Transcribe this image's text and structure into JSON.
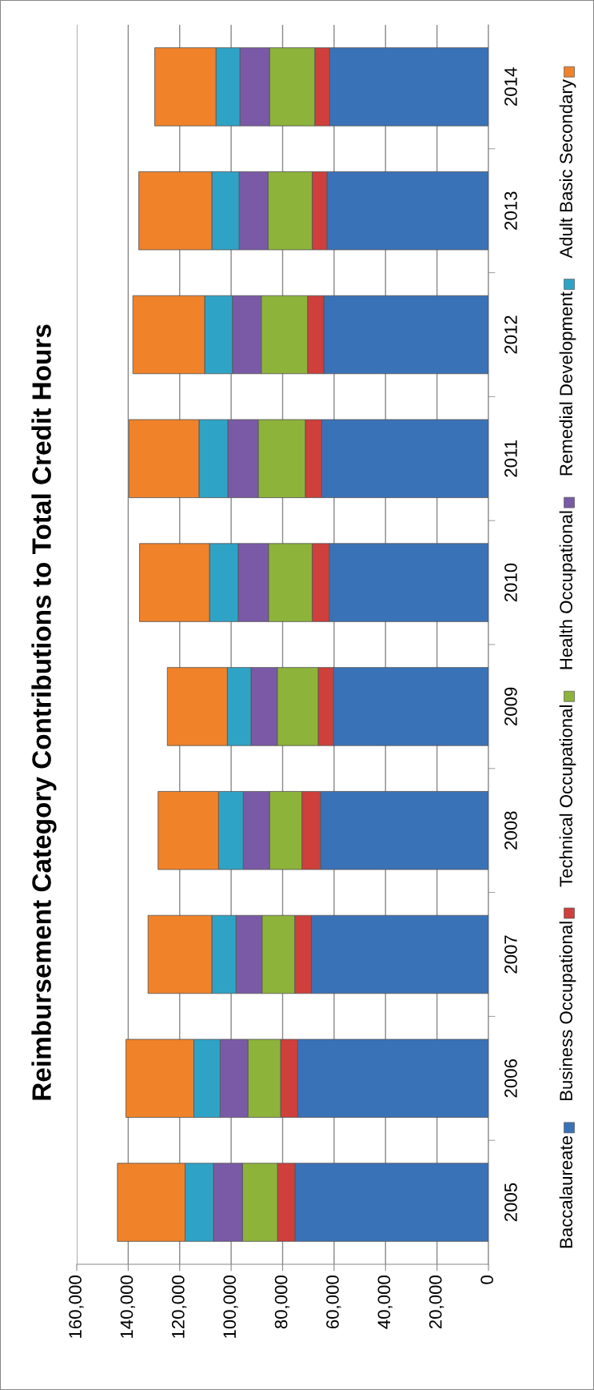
{
  "chart_data": {
    "type": "bar",
    "title": "Reimbursement Category Contributions to Total Credit Hours",
    "orientation": "horizontal",
    "stacked": true,
    "categories": [
      "2014",
      "2013",
      "2012",
      "2011",
      "2010",
      "2009",
      "2008",
      "2007",
      "2006",
      "2005"
    ],
    "series": [
      {
        "name": "Baccalaureate",
        "color": "#3a72b8",
        "values": [
          61700,
          62800,
          64000,
          64800,
          61900,
          60300,
          65300,
          68800,
          74100,
          75200
        ]
      },
      {
        "name": "Business Occupational",
        "color": "#cf3f3b",
        "values": [
          5800,
          5700,
          6300,
          6400,
          6600,
          5900,
          7200,
          6500,
          6700,
          6800
        ]
      },
      {
        "name": "Technical Occupational",
        "color": "#8db33a",
        "values": [
          17600,
          17200,
          18000,
          18300,
          17000,
          15900,
          12600,
          12700,
          12700,
          13600
        ]
      },
      {
        "name": "Health Occupational",
        "color": "#7a5aa6",
        "values": [
          11500,
          11200,
          11200,
          11800,
          11800,
          10200,
          10200,
          10100,
          10800,
          11300
        ]
      },
      {
        "name": "Remedial Development",
        "color": "#2fa3c6",
        "values": [
          9300,
          10600,
          10800,
          11200,
          11100,
          9200,
          9600,
          9400,
          10200,
          11000
        ]
      },
      {
        "name": "Adult Basic Secondary",
        "color": "#f0822a",
        "values": [
          23800,
          28400,
          27900,
          27200,
          27200,
          23300,
          23500,
          24800,
          26400,
          26300
        ]
      }
    ],
    "xlim": [
      160000,
      0
    ],
    "xticks": [
      {
        "value": 160000,
        "label": "160,000"
      },
      {
        "value": 140000,
        "label": "140,000"
      },
      {
        "value": 120000,
        "label": "120,000"
      },
      {
        "value": 100000,
        "label": "100,000"
      },
      {
        "value": 80000,
        "label": "80,000"
      },
      {
        "value": 60000,
        "label": "60,000"
      },
      {
        "value": 40000,
        "label": "40,000"
      },
      {
        "value": 20000,
        "label": "20,000"
      },
      {
        "value": 0,
        "label": "0"
      }
    ],
    "grid": "x",
    "legend": "right"
  }
}
